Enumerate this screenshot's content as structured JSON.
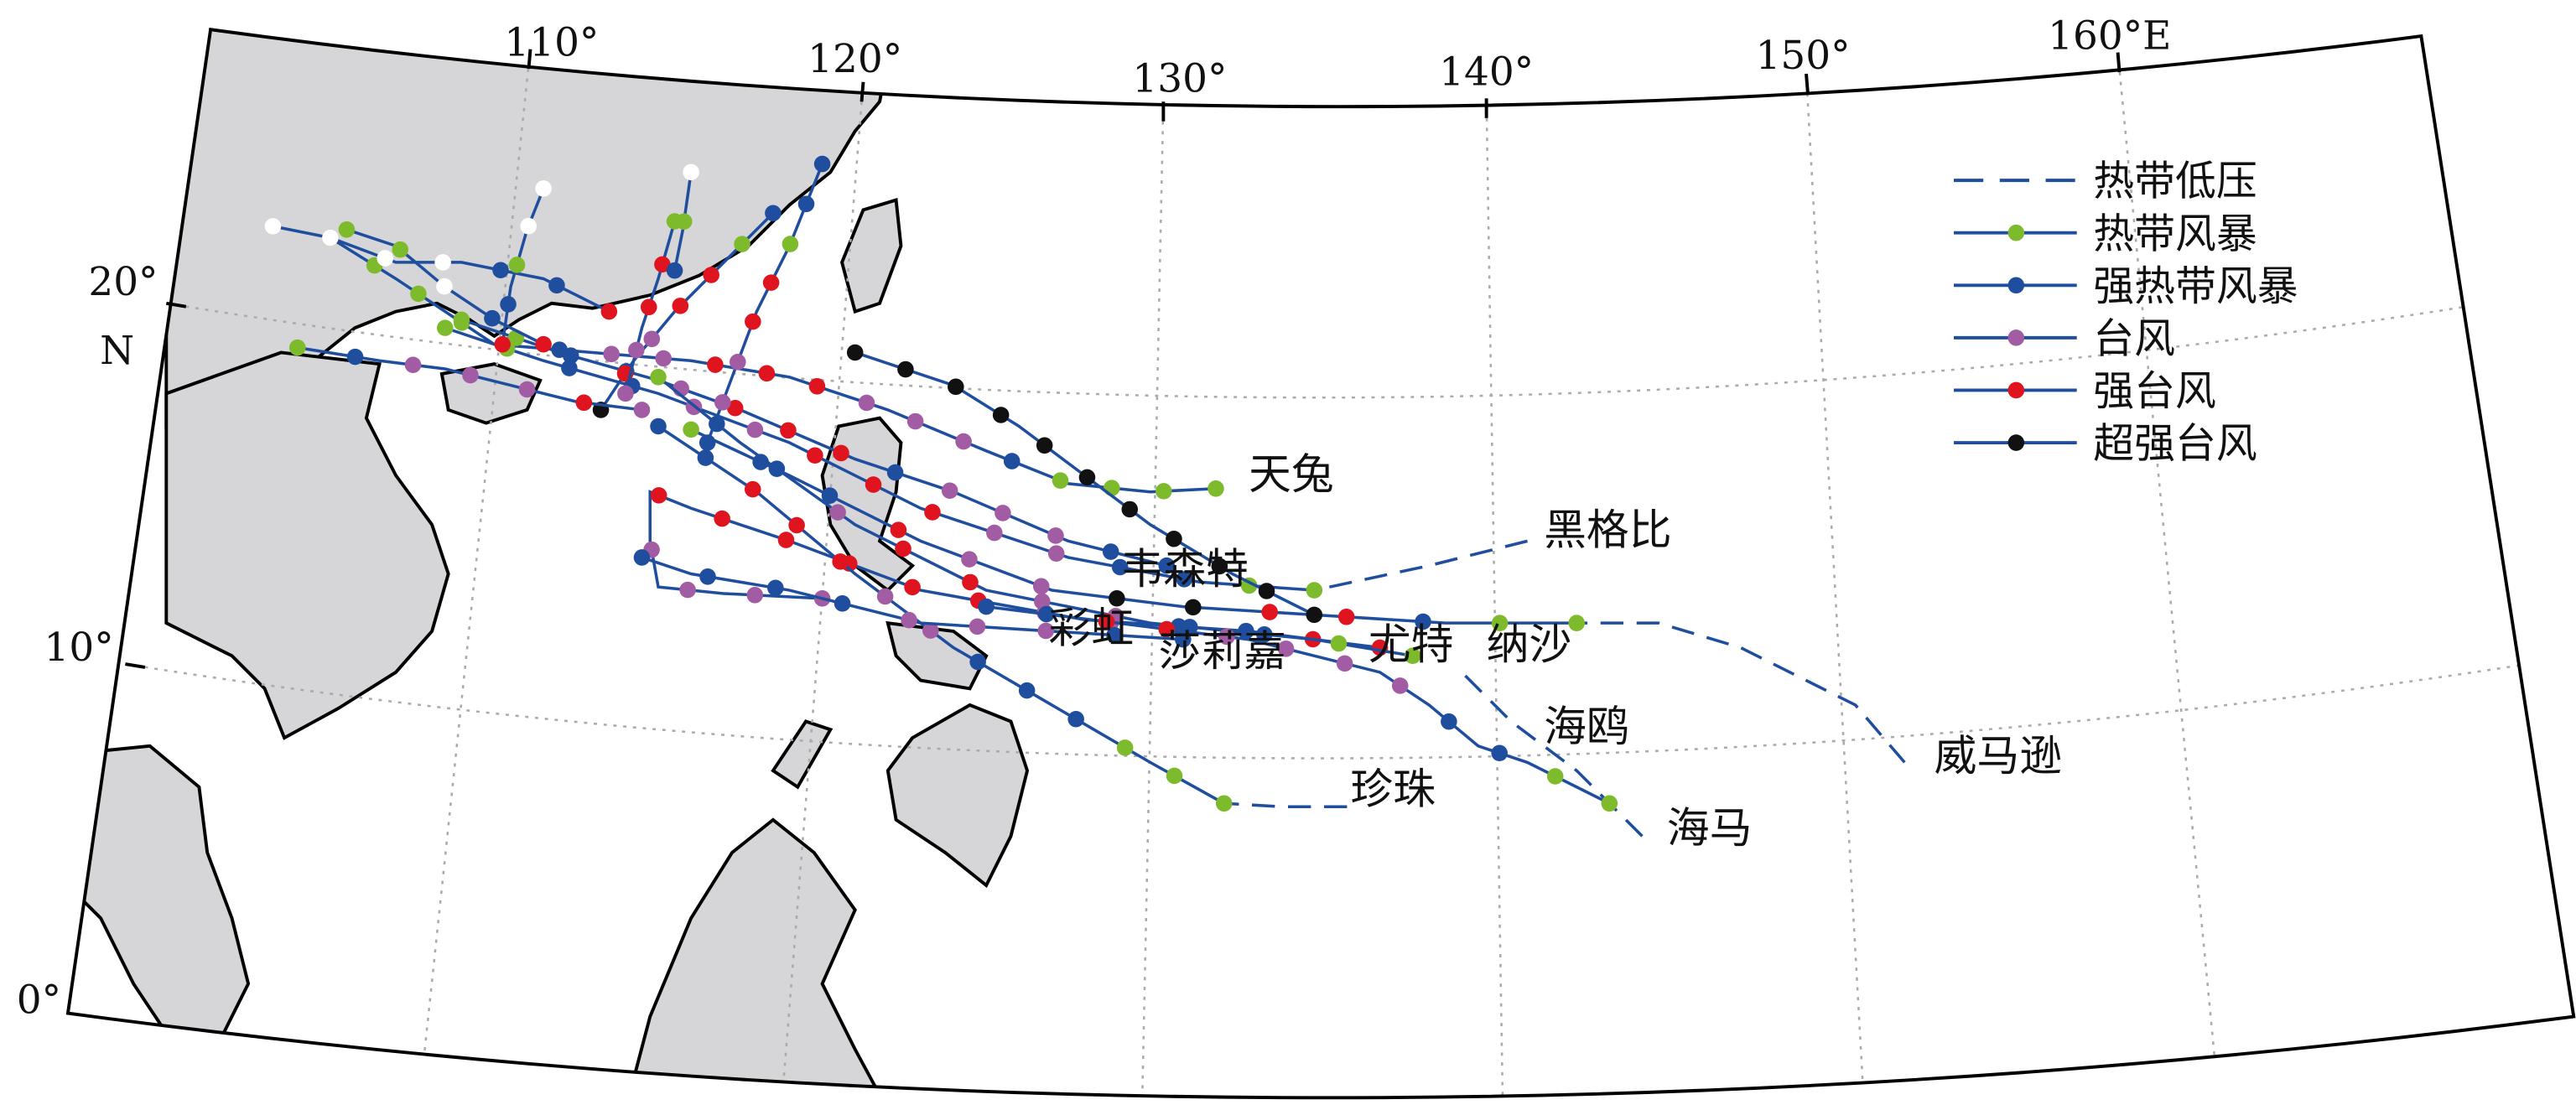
{
  "graticule": {
    "longitudes": [
      "110°",
      "120°",
      "130°",
      "140°",
      "150°",
      "160°E"
    ],
    "latitudes": [
      "20°",
      "10°",
      "0°"
    ],
    "north": "N"
  },
  "legend": [
    "热带低压",
    "热带风暴",
    "强热带风暴",
    "台风",
    "强台风",
    "超强台风"
  ],
  "typhoons": [
    "天兔",
    "韦森特",
    "黑格比",
    "纳沙",
    "尤特",
    "莎莉嘉",
    "彩虹",
    "海鸥",
    "威马逊",
    "珍珠",
    "海马"
  ]
}
